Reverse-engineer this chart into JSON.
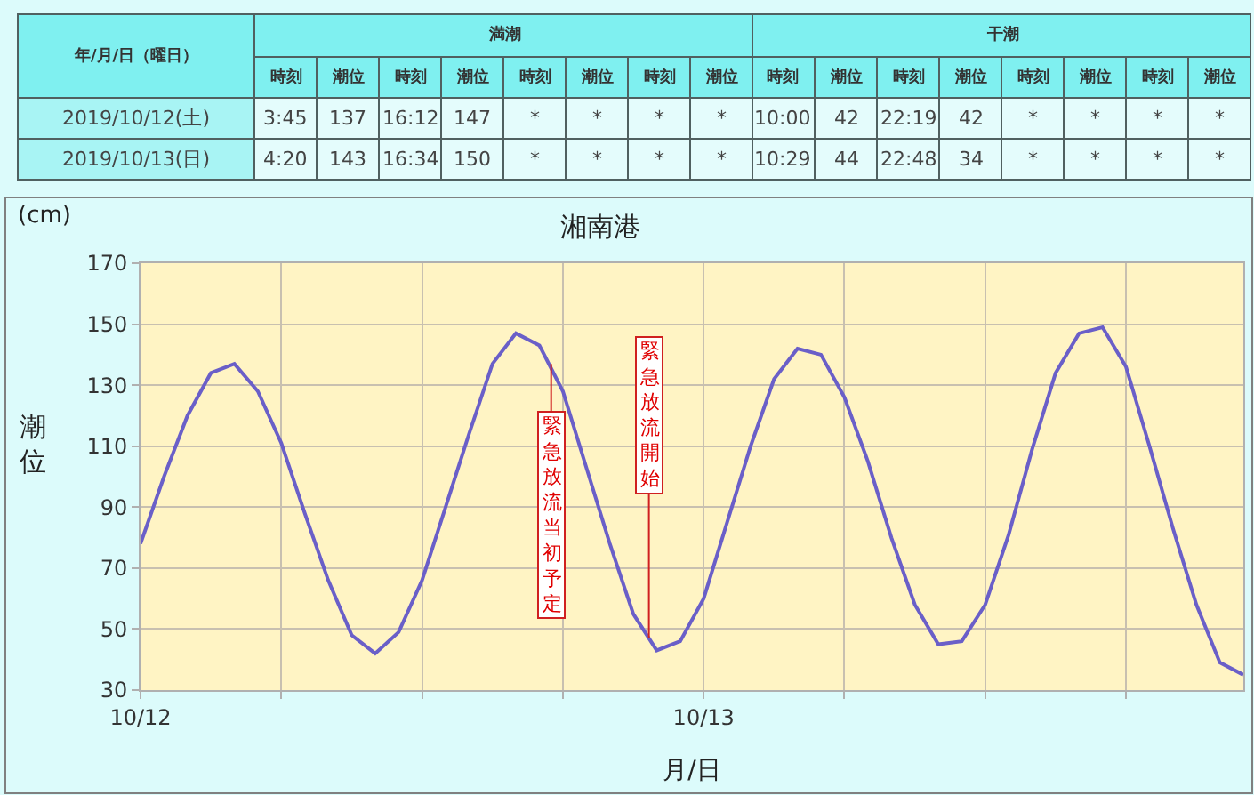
{
  "chart_data": {
    "type": "line",
    "title": "湘南港",
    "xlabel": "月/日",
    "ylabel": "潮位",
    "x": [
      "2019-10-12T00:00",
      "2019-10-12T01:00",
      "2019-10-12T02:00",
      "2019-10-12T03:00",
      "2019-10-12T04:00",
      "2019-10-12T05:00",
      "2019-10-12T06:00",
      "2019-10-12T07:00",
      "2019-10-12T08:00",
      "2019-10-12T09:00",
      "2019-10-12T10:00",
      "2019-10-12T11:00",
      "2019-10-12T12:00",
      "2019-10-12T13:00",
      "2019-10-12T14:00",
      "2019-10-12T15:00",
      "2019-10-12T16:00",
      "2019-10-12T17:00",
      "2019-10-12T18:00",
      "2019-10-12T19:00",
      "2019-10-12T20:00",
      "2019-10-12T21:00",
      "2019-10-12T22:00",
      "2019-10-12T23:00",
      "2019-10-13T00:00",
      "2019-10-13T01:00",
      "2019-10-13T02:00",
      "2019-10-13T03:00",
      "2019-10-13T04:00",
      "2019-10-13T05:00",
      "2019-10-13T06:00",
      "2019-10-13T07:00",
      "2019-10-13T08:00",
      "2019-10-13T09:00",
      "2019-10-13T10:00",
      "2019-10-13T11:00",
      "2019-10-13T12:00",
      "2019-10-13T13:00",
      "2019-10-13T14:00",
      "2019-10-13T15:00",
      "2019-10-13T16:00",
      "2019-10-13T17:00",
      "2019-10-13T18:00",
      "2019-10-13T19:00",
      "2019-10-13T20:00",
      "2019-10-13T21:00",
      "2019-10-13T22:00",
      "2019-10-13T23:00"
    ],
    "series": [
      {
        "color": "#6a5fc8",
        "values": [
          78,
          100,
          120,
          134,
          137,
          128,
          111,
          88,
          66,
          48,
          42,
          49,
          66,
          90,
          114,
          137,
          147,
          143,
          128,
          103,
          78,
          55,
          43,
          46,
          60,
          85,
          110,
          132,
          142,
          140,
          126,
          105,
          80,
          58,
          45,
          46,
          58,
          81,
          109,
          134,
          147,
          149,
          136,
          110,
          83,
          58,
          39,
          35
        ]
      }
    ],
    "xlim": [
      "2019-10-12T00:00",
      "2019-10-13T23:00"
    ],
    "xticks": [
      {
        "value": "2019-10-12T00:00",
        "label": "10/12"
      },
      {
        "value": "2019-10-12T06:00",
        "label": null
      },
      {
        "value": "2019-10-12T12:00",
        "label": null
      },
      {
        "value": "2019-10-12T18:00",
        "label": null
      },
      {
        "value": "2019-10-13T00:00",
        "label": "10/13"
      },
      {
        "value": "2019-10-13T06:00",
        "label": null
      },
      {
        "value": "2019-10-13T12:00",
        "label": null
      },
      {
        "value": "2019-10-13T18:00",
        "label": null
      }
    ],
    "ylim": [
      30,
      170
    ],
    "yticks": [
      30,
      50,
      70,
      90,
      110,
      130,
      150,
      170
    ],
    "grid": true,
    "marker": "none",
    "line_style": "solid",
    "annotations": [
      {
        "text": "緊急放流当初予定",
        "x": "2019-10-12T17:30",
        "y": 137
      },
      {
        "text": "緊急放流開始",
        "x": "2019-10-12T21:40",
        "y": 47
      },
      "(cm)",
      "年/月/日（曜日）",
      "満潮",
      "干潮",
      "時刻",
      "潮位",
      "時刻",
      "潮位",
      "時刻",
      "潮位",
      "時刻",
      "潮位",
      "時刻",
      "潮位",
      "時刻",
      "潮位",
      "時刻",
      "潮位",
      "時刻",
      "潮位",
      "2019/10/12(土)",
      "3:45",
      "137",
      "16:12",
      "147",
      "*",
      "*",
      "*",
      "*",
      "10:00",
      "42",
      "22:19",
      "42",
      "*",
      "*",
      "*",
      "*",
      "2019/10/13(日)",
      "4:20",
      "143",
      "16:34",
      "150",
      "*",
      "*",
      "*",
      "*",
      "10:29",
      "44",
      "22:48",
      "34",
      "*",
      "*",
      "*",
      "*"
    ]
  }
}
